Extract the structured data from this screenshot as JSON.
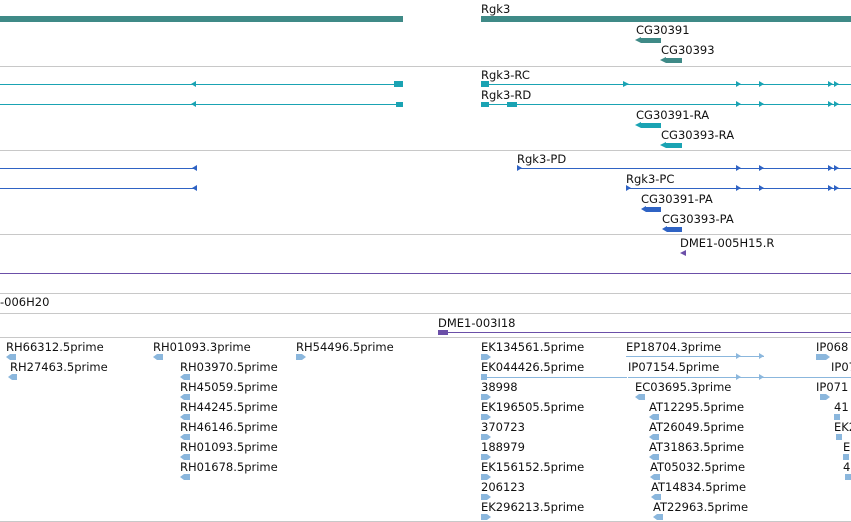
{
  "colors": {
    "gene": "#3f8a87",
    "transcript": "#1aa3b3",
    "protein": "#2f63c4",
    "clone": "#6b4fa8",
    "est": "#8bb7dd",
    "separator": "#c8c8c8"
  },
  "tracks": {
    "gene": {
      "labels": [
        "Rgk3",
        "CG30391",
        "CG30393"
      ]
    },
    "transcript": {
      "labels": [
        "Rgk3-RC",
        "Rgk3-RD",
        "CG30391-RA",
        "CG30393-RA"
      ]
    },
    "protein": {
      "labels": [
        "Rgk3-PD",
        "Rgk3-PC",
        "CG30391-PA",
        "CG30393-PA"
      ]
    },
    "clone_a": {
      "labels": [
        "DME1-005H15.R"
      ]
    },
    "clone_b": {
      "labels": [
        "-006H20",
        "DME1-003I18"
      ]
    },
    "est": {
      "labels": [
        "RH66312.5prime",
        "RH27463.5prime",
        "RH01093.3prime",
        "RH03970.5prime",
        "RH45059.5prime",
        "RH44245.5prime",
        "RH46146.5prime",
        "RH01093.5prime",
        "RH01678.5prime",
        "RH54496.5prime",
        "EK134561.5prime",
        "EK044426.5prime",
        "38998",
        "EK196505.5prime",
        "370723",
        "188979",
        "EK156152.5prime",
        "206123",
        "EK296213.5prime",
        "EP18704.3prime",
        "IP07154.5prime",
        "EC03695.3prime",
        "AT12295.5prime",
        "AT26049.5prime",
        "AT31863.5prime",
        "AT05032.5prime",
        "AT14834.5prime",
        "AT22963.5prime",
        "IP068",
        "IP07",
        "IP071",
        "41",
        "EK2",
        "E",
        "4"
      ]
    }
  }
}
